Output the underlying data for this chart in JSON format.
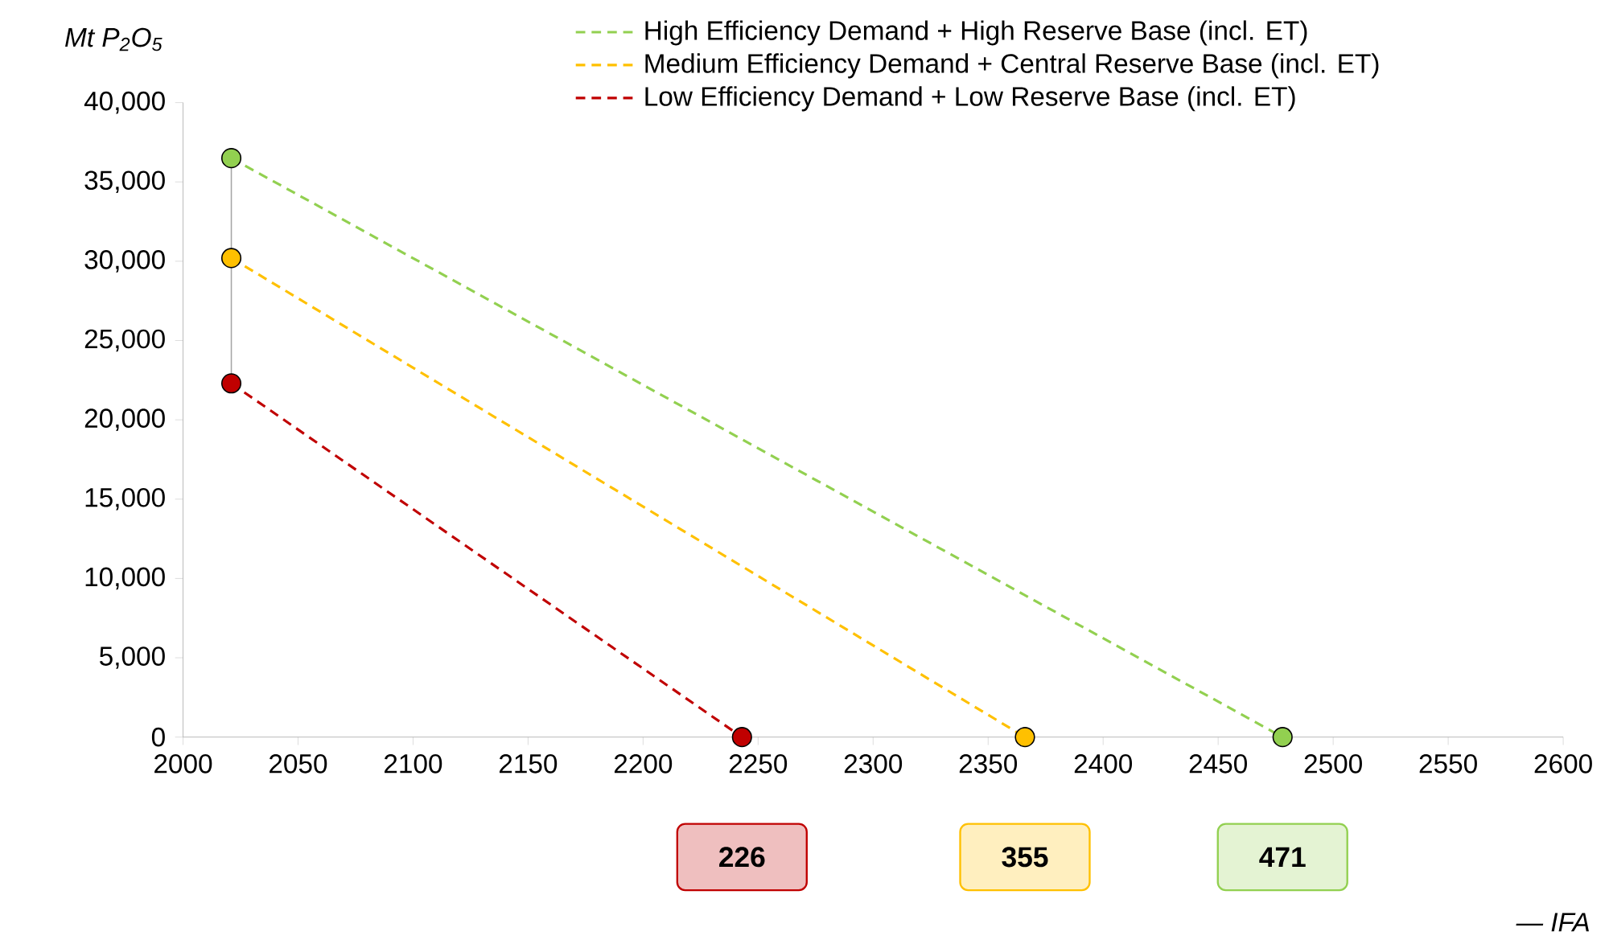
{
  "chart_data": {
    "type": "line",
    "ylabel": "Mt P$_{2}$O$_{5}$",
    "series": [
      {
        "name": "High Efficiency Demand + High Reserve Base (incl. ET)",
        "color": "#92d050",
        "x": [
          2021,
          2478
        ],
        "values": [
          36500,
          0
        ]
      },
      {
        "name": "Medium Efficiency Demand + Central Reserve Base (incl. ET)",
        "color": "#ffc000",
        "x": [
          2021,
          2366
        ],
        "values": [
          30200,
          0
        ]
      },
      {
        "name": "Low Efficiency Demand + Low Reserve Base (incl. ET)",
        "color": "#c00000",
        "x": [
          2021,
          2243
        ],
        "values": [
          22300,
          0
        ]
      },
      {
        "color": "#a6a6a6",
        "x": [
          2021,
          2021
        ],
        "values": [
          22300,
          36500
        ],
        "line_style": "solid",
        "marker": "none"
      }
    ],
    "line_style": "dashed",
    "marker": "circle",
    "legend": "top right",
    "xlim": [
      2000,
      2600
    ],
    "xticks": [
      2000,
      2050,
      2100,
      2150,
      2200,
      2250,
      2300,
      2350,
      2400,
      2450,
      2500,
      2550,
      2600
    ],
    "ylim": [
      0,
      40000
    ],
    "yticks": [
      {
        "value": 0,
        "label": "0"
      },
      {
        "value": 5000,
        "label": "5,000"
      },
      {
        "value": 10000,
        "label": "10,000"
      },
      {
        "value": 15000,
        "label": "15,000"
      },
      {
        "value": 20000,
        "label": "20,000"
      },
      {
        "value": 25000,
        "label": "25,000"
      },
      {
        "value": 30000,
        "label": "30,000"
      },
      {
        "value": 35000,
        "label": "35,000"
      },
      {
        "value": 40000,
        "label": "40,000"
      }
    ],
    "annotations": [
      "471",
      "355",
      "226",
      "— IFA"
    ]
  }
}
